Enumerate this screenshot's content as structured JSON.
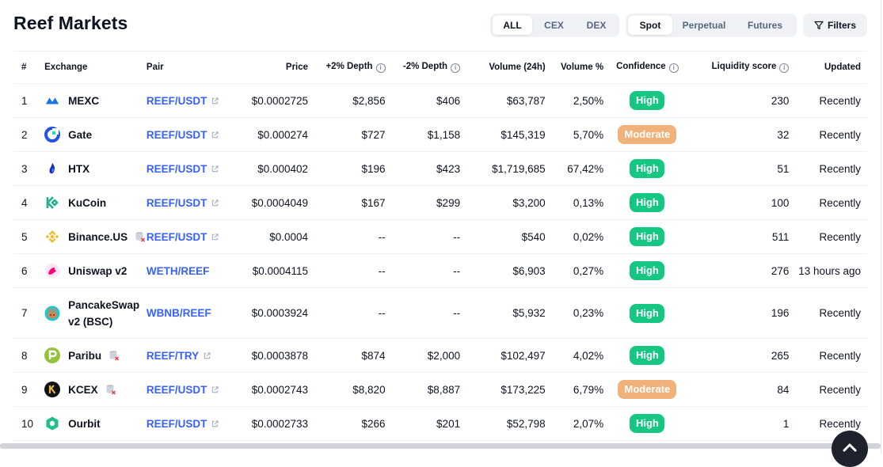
{
  "title": "Reef Markets",
  "market_type_tabs": [
    {
      "label": "ALL",
      "active": true
    },
    {
      "label": "CEX",
      "active": false
    },
    {
      "label": "DEX",
      "active": false
    }
  ],
  "category_tabs": [
    {
      "label": "Spot",
      "active": true
    },
    {
      "label": "Perpetual",
      "active": false
    },
    {
      "label": "Futures",
      "active": false
    }
  ],
  "filters_label": "Filters",
  "columns": {
    "rank": "#",
    "exchange": "Exchange",
    "pair": "Pair",
    "price": "Price",
    "depth_plus": "+2% Depth",
    "depth_minus": "-2% Depth",
    "volume": "Volume (24h)",
    "volume_pct": "Volume %",
    "confidence": "Confidence",
    "liquidity": "Liquidity score",
    "updated": "Updated"
  },
  "rows": [
    {
      "rank": "1",
      "exchange": "MEXC",
      "logo": "mexc-logo-icon",
      "pair": "REEF/USDT",
      "external": true,
      "price": "$0.0002725",
      "depth_plus": "$2,856",
      "depth_minus": "$406",
      "volume": "$63,787",
      "volume_pct": "2,50%",
      "confidence": "High",
      "liquidity": "230",
      "updated": "Recently",
      "db_icon": false
    },
    {
      "rank": "2",
      "exchange": "Gate",
      "logo": "gate-logo-icon",
      "pair": "REEF/USDT",
      "external": true,
      "price": "$0.000274",
      "depth_plus": "$727",
      "depth_minus": "$1,158",
      "volume": "$145,319",
      "volume_pct": "5,70%",
      "confidence": "Moderate",
      "liquidity": "32",
      "updated": "Recently",
      "db_icon": false
    },
    {
      "rank": "3",
      "exchange": "HTX",
      "logo": "htx-logo-icon",
      "pair": "REEF/USDT",
      "external": true,
      "price": "$0.000402",
      "depth_plus": "$196",
      "depth_minus": "$423",
      "volume": "$1,719,685",
      "volume_pct": "67,42%",
      "confidence": "High",
      "liquidity": "51",
      "updated": "Recently",
      "db_icon": false
    },
    {
      "rank": "4",
      "exchange": "KuCoin",
      "logo": "kucoin-logo-icon",
      "pair": "REEF/USDT",
      "external": true,
      "price": "$0.0004049",
      "depth_plus": "$167",
      "depth_minus": "$299",
      "volume": "$3,200",
      "volume_pct": "0,13%",
      "confidence": "High",
      "liquidity": "100",
      "updated": "Recently",
      "db_icon": false
    },
    {
      "rank": "5",
      "exchange": "Binance.US",
      "logo": "binance-logo-icon",
      "pair": "REEF/USDT",
      "external": true,
      "price": "$0.0004",
      "depth_plus": "--",
      "depth_minus": "--",
      "volume": "$540",
      "volume_pct": "0,02%",
      "confidence": "High",
      "liquidity": "511",
      "updated": "Recently",
      "db_icon": true
    },
    {
      "rank": "6",
      "exchange": "Uniswap v2",
      "logo": "uniswap-logo-icon",
      "pair": "WETH/REEF",
      "external": false,
      "price": "$0.0004115",
      "depth_plus": "--",
      "depth_minus": "--",
      "volume": "$6,903",
      "volume_pct": "0,27%",
      "confidence": "High",
      "liquidity": "276",
      "updated": "13 hours ago",
      "db_icon": false
    },
    {
      "rank": "7",
      "exchange": "PancakeSwap v2 (BSC)",
      "exchange_line1": "PancakeSwap",
      "exchange_line2": "v2 (BSC)",
      "logo": "pancakeswap-logo-icon",
      "pair": "WBNB/REEF",
      "external": false,
      "price": "$0.0003924",
      "depth_plus": "--",
      "depth_minus": "--",
      "volume": "$5,932",
      "volume_pct": "0,23%",
      "confidence": "High",
      "liquidity": "196",
      "updated": "Recently",
      "db_icon": false
    },
    {
      "rank": "8",
      "exchange": "Paribu",
      "logo": "paribu-logo-icon",
      "pair": "REEF/TRY",
      "external": true,
      "price": "$0.0003878",
      "depth_plus": "$874",
      "depth_minus": "$2,000",
      "volume": "$102,497",
      "volume_pct": "4,02%",
      "confidence": "High",
      "liquidity": "265",
      "updated": "Recently",
      "db_icon": true
    },
    {
      "rank": "9",
      "exchange": "KCEX",
      "logo": "kcex-logo-icon",
      "pair": "REEF/USDT",
      "external": true,
      "price": "$0.0002743",
      "depth_plus": "$8,820",
      "depth_minus": "$8,887",
      "volume": "$173,225",
      "volume_pct": "6,79%",
      "confidence": "Moderate",
      "liquidity": "84",
      "updated": "Recently",
      "db_icon": true
    },
    {
      "rank": "10",
      "exchange": "Ourbit",
      "logo": "ourbit-logo-icon",
      "pair": "REEF/USDT",
      "external": true,
      "price": "$0.0002733",
      "depth_plus": "$266",
      "depth_minus": "$201",
      "volume": "$52,798",
      "volume_pct": "2,07%",
      "confidence": "High",
      "liquidity": "1",
      "updated": "Recently",
      "db_icon": false
    }
  ],
  "colors": {
    "accent_link": "#3861fb",
    "high": "#16c784",
    "moderate": "#f0b27a",
    "text": "#0d1421",
    "muted": "#58667e"
  }
}
